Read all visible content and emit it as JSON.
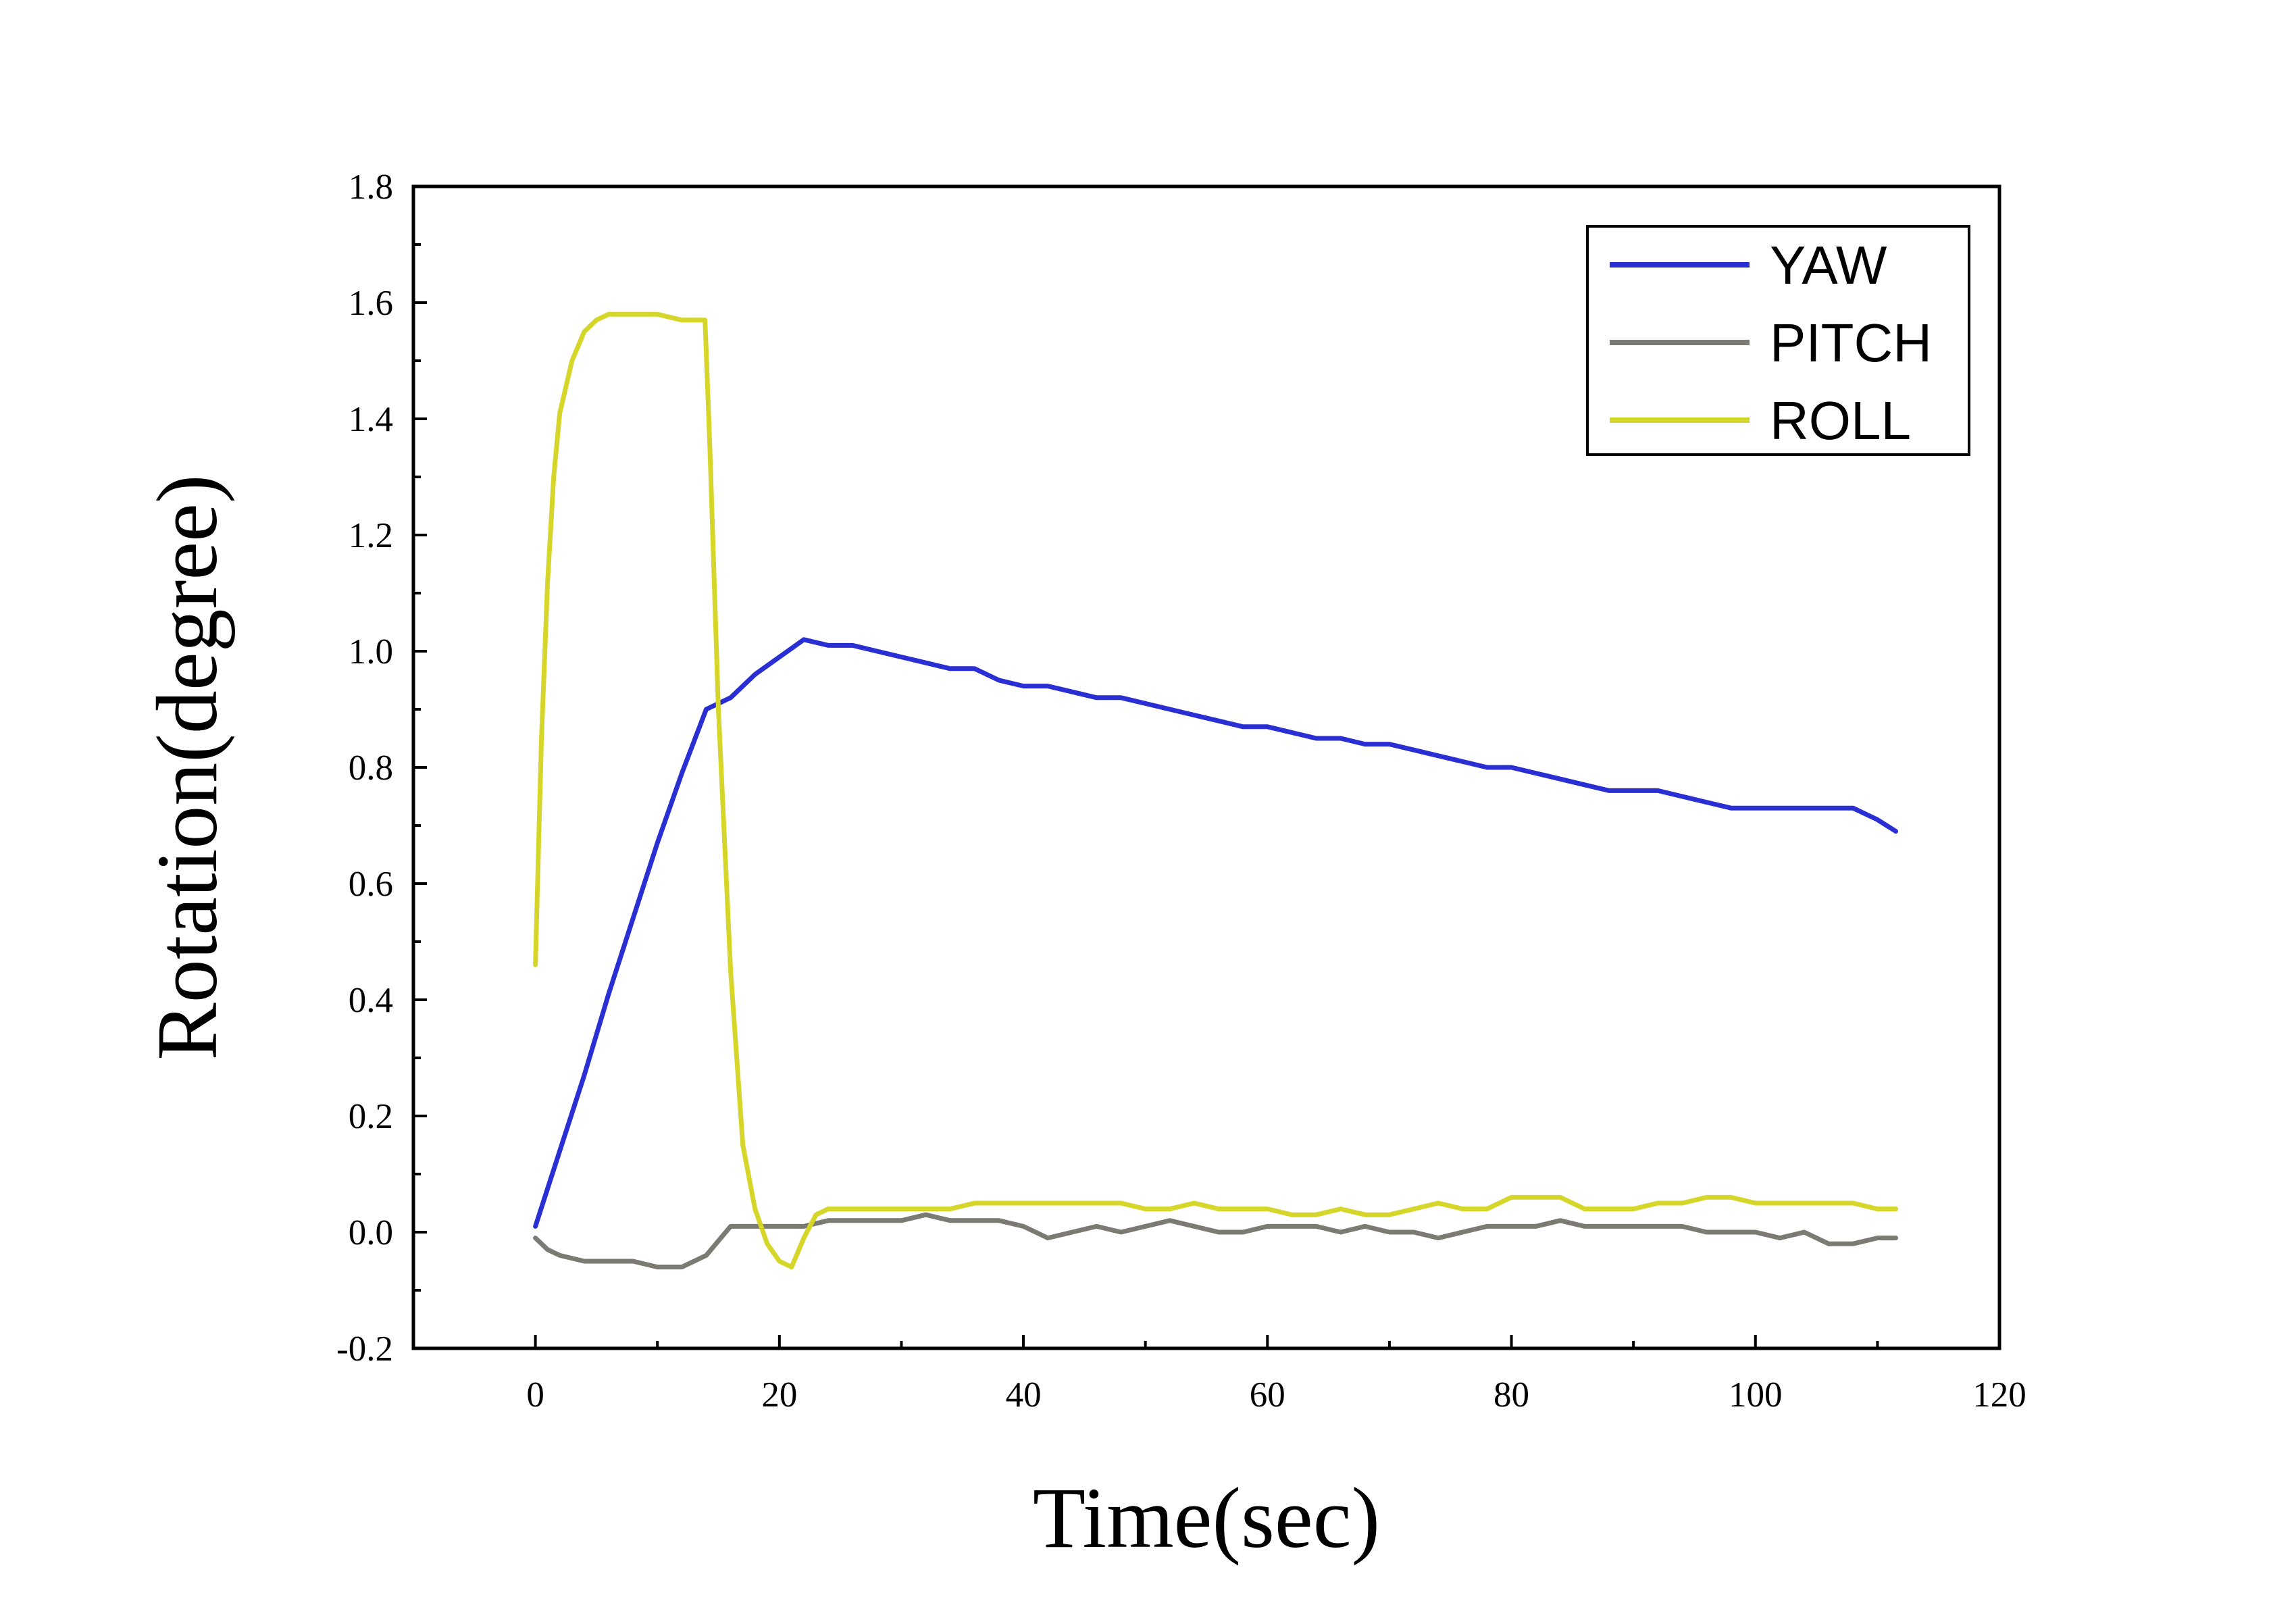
{
  "chart_data": {
    "type": "line",
    "xlabel": "Time(sec)",
    "ylabel": "Rotation(degree)",
    "xlim": [
      -10,
      120
    ],
    "ylim": [
      -0.2,
      1.8
    ],
    "xticks": [
      0,
      20,
      40,
      60,
      80,
      100,
      120
    ],
    "xtick_labels": [
      "0",
      "20",
      "40",
      "60",
      "80",
      "100",
      "120"
    ],
    "yticks": [
      -0.2,
      0.0,
      0.2,
      0.4,
      0.6,
      0.8,
      1.0,
      1.2,
      1.4,
      1.6,
      1.8
    ],
    "ytick_labels": [
      "-0.2",
      "0.0",
      "0.2",
      "0.4",
      "0.6",
      "0.8",
      "1.0",
      "1.2",
      "1.4",
      "1.6",
      "1.8"
    ],
    "grid": false,
    "legend_position": "top-right",
    "series": [
      {
        "name": "YAW",
        "color": "#2a2fd4",
        "x": [
          0,
          2,
          4,
          6,
          8,
          10,
          12,
          14,
          16,
          18,
          20,
          22,
          24,
          26,
          28,
          30,
          32,
          34,
          36,
          38,
          40,
          42,
          44,
          46,
          48,
          50,
          52,
          54,
          56,
          58,
          60,
          62,
          64,
          66,
          68,
          70,
          72,
          74,
          76,
          78,
          80,
          82,
          84,
          86,
          88,
          90,
          92,
          94,
          96,
          98,
          100,
          102,
          104,
          106,
          108,
          110,
          111.5
        ],
        "y": [
          0.01,
          0.14,
          0.27,
          0.41,
          0.54,
          0.67,
          0.79,
          0.9,
          0.92,
          0.96,
          0.99,
          1.02,
          1.01,
          1.01,
          1.0,
          0.99,
          0.98,
          0.97,
          0.97,
          0.95,
          0.94,
          0.94,
          0.93,
          0.92,
          0.92,
          0.91,
          0.9,
          0.89,
          0.88,
          0.87,
          0.87,
          0.86,
          0.85,
          0.85,
          0.84,
          0.84,
          0.83,
          0.82,
          0.81,
          0.8,
          0.8,
          0.79,
          0.78,
          0.77,
          0.76,
          0.76,
          0.76,
          0.75,
          0.74,
          0.73,
          0.73,
          0.73,
          0.73,
          0.73,
          0.73,
          0.71,
          0.69
        ]
      },
      {
        "name": "PITCH",
        "color": "#7b7b74",
        "x": [
          0,
          1,
          2,
          4,
          6,
          8,
          10,
          12,
          14,
          16,
          18,
          20,
          22,
          24,
          26,
          28,
          30,
          32,
          34,
          36,
          38,
          40,
          42,
          44,
          46,
          48,
          50,
          52,
          54,
          56,
          58,
          60,
          62,
          64,
          66,
          68,
          70,
          72,
          74,
          76,
          78,
          80,
          82,
          84,
          86,
          88,
          90,
          92,
          94,
          96,
          98,
          100,
          102,
          104,
          106,
          108,
          110,
          111.5
        ],
        "y": [
          -0.01,
          -0.03,
          -0.04,
          -0.05,
          -0.05,
          -0.05,
          -0.06,
          -0.06,
          -0.04,
          0.01,
          0.01,
          0.01,
          0.01,
          0.02,
          0.02,
          0.02,
          0.02,
          0.03,
          0.02,
          0.02,
          0.02,
          0.01,
          -0.01,
          0.0,
          0.01,
          0.0,
          0.01,
          0.02,
          0.01,
          0.0,
          0.0,
          0.01,
          0.01,
          0.01,
          0.0,
          0.01,
          0.0,
          0.0,
          -0.01,
          0.0,
          0.01,
          0.01,
          0.01,
          0.02,
          0.01,
          0.01,
          0.01,
          0.01,
          0.01,
          0.0,
          0.0,
          0.0,
          -0.01,
          0.0,
          -0.02,
          -0.02,
          -0.01,
          -0.01
        ]
      },
      {
        "name": "ROLL",
        "color": "#d6d62a",
        "x": [
          0,
          0.5,
          1,
          1.5,
          2,
          3,
          4,
          5,
          6,
          8,
          10,
          12,
          13.9,
          14.3,
          15,
          16,
          17,
          18,
          19,
          20,
          21,
          22,
          23,
          24,
          26,
          28,
          30,
          32,
          34,
          36,
          38,
          40,
          42,
          44,
          46,
          48,
          50,
          52,
          54,
          56,
          58,
          60,
          62,
          64,
          66,
          68,
          70,
          72,
          74,
          76,
          78,
          80,
          82,
          84,
          86,
          88,
          90,
          92,
          94,
          96,
          98,
          100,
          102,
          104,
          106,
          108,
          110,
          111.5
        ],
        "y": [
          0.46,
          0.85,
          1.12,
          1.3,
          1.41,
          1.5,
          1.55,
          1.57,
          1.58,
          1.58,
          1.58,
          1.57,
          1.57,
          1.35,
          0.9,
          0.45,
          0.15,
          0.04,
          -0.02,
          -0.05,
          -0.06,
          -0.01,
          0.03,
          0.04,
          0.04,
          0.04,
          0.04,
          0.04,
          0.04,
          0.05,
          0.05,
          0.05,
          0.05,
          0.05,
          0.05,
          0.05,
          0.04,
          0.04,
          0.05,
          0.04,
          0.04,
          0.04,
          0.03,
          0.03,
          0.04,
          0.03,
          0.03,
          0.04,
          0.05,
          0.04,
          0.04,
          0.06,
          0.06,
          0.06,
          0.04,
          0.04,
          0.04,
          0.05,
          0.05,
          0.06,
          0.06,
          0.05,
          0.05,
          0.05,
          0.05,
          0.05,
          0.04,
          0.04
        ]
      }
    ]
  }
}
